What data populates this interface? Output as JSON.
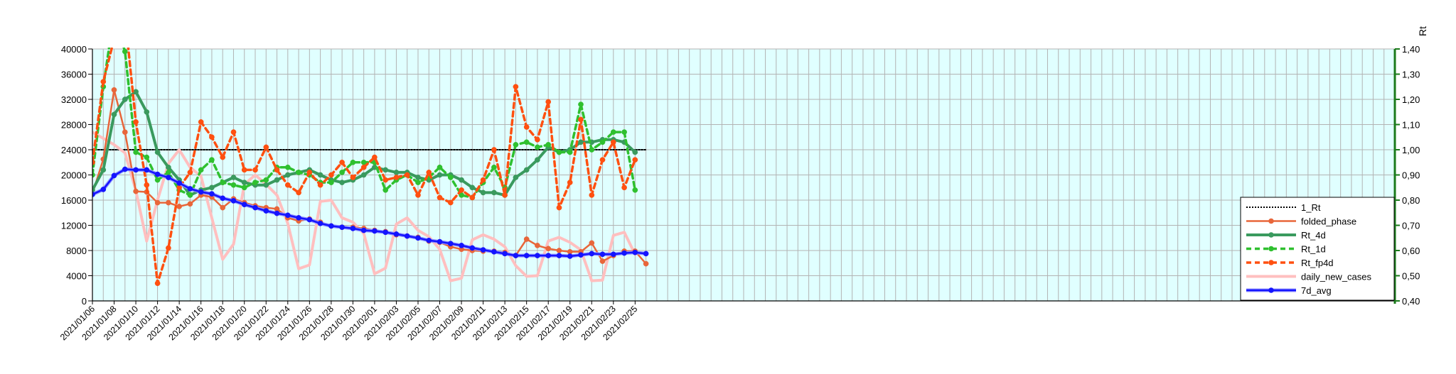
{
  "chart_data": {
    "type": "line",
    "title": "",
    "xlabel": "",
    "ylabel_left": "",
    "ylabel_right": "Rt",
    "ylim_left": [
      0,
      40000
    ],
    "ylim_right": [
      0.4,
      1.4
    ],
    "yticks_left": [
      "0",
      "4000",
      "8000",
      "12000",
      "16000",
      "20000",
      "24000",
      "28000",
      "32000",
      "36000",
      "40000"
    ],
    "yticks_right": [
      "0,40",
      "0,50",
      "0,60",
      "0,70",
      "0,80",
      "0,90",
      "1,00",
      "1,10",
      "1,20",
      "1,30",
      "1,40"
    ],
    "grid": true,
    "legend_position": "right",
    "x_start": "2021/01/06",
    "x_end": "2021/05/06",
    "x_tick_labels": [
      "2021/01/06",
      "2021/01/08",
      "2021/01/10",
      "2021/01/12",
      "2021/01/14",
      "2021/01/16",
      "2021/01/18",
      "2021/01/20",
      "2021/01/22",
      "2021/01/24",
      "2021/01/26",
      "2021/01/28",
      "2021/01/30",
      "2021/02/01",
      "2021/02/03",
      "2021/02/05",
      "2021/02/07",
      "2021/02/09",
      "2021/02/11",
      "2021/02/13",
      "2021/02/15",
      "2021/02/17",
      "2021/02/19",
      "2021/02/21",
      "2021/02/23",
      "2021/02/25"
    ],
    "x": [
      "2021/01/06",
      "2021/01/07",
      "2021/01/08",
      "2021/01/09",
      "2021/01/10",
      "2021/01/11",
      "2021/01/12",
      "2021/01/13",
      "2021/01/14",
      "2021/01/15",
      "2021/01/16",
      "2021/01/17",
      "2021/01/18",
      "2021/01/19",
      "2021/01/20",
      "2021/01/21",
      "2021/01/22",
      "2021/01/23",
      "2021/01/24",
      "2021/01/25",
      "2021/01/26",
      "2021/01/27",
      "2021/01/28",
      "2021/01/29",
      "2021/01/30",
      "2021/01/31",
      "2021/02/01",
      "2021/02/02",
      "2021/02/03",
      "2021/02/04",
      "2021/02/05",
      "2021/02/06",
      "2021/02/07",
      "2021/02/08",
      "2021/02/09",
      "2021/02/10",
      "2021/02/11",
      "2021/02/12",
      "2021/02/13",
      "2021/02/14",
      "2021/02/15",
      "2021/02/16",
      "2021/02/17",
      "2021/02/18",
      "2021/02/19",
      "2021/02/20",
      "2021/02/21",
      "2021/02/22",
      "2021/02/23",
      "2021/02/24",
      "2021/02/25",
      "2021/02/26"
    ],
    "series": [
      {
        "name": "1_Rt",
        "axis": "right",
        "color": "#000000",
        "dash": "dotted",
        "marker": "none",
        "width": 2,
        "values": [
          1.0,
          1.0,
          1.0,
          1.0,
          1.0,
          1.0,
          1.0,
          1.0,
          1.0,
          1.0,
          1.0,
          1.0,
          1.0,
          1.0,
          1.0,
          1.0,
          1.0,
          1.0,
          1.0,
          1.0,
          1.0,
          1.0,
          1.0,
          1.0,
          1.0,
          1.0,
          1.0,
          1.0,
          1.0,
          1.0,
          1.0,
          1.0,
          1.0,
          1.0,
          1.0,
          1.0,
          1.0,
          1.0,
          1.0,
          1.0,
          1.0,
          1.0,
          1.0,
          1.0,
          1.0,
          1.0,
          1.0,
          1.0,
          1.0,
          1.0,
          1.0,
          1.0
        ]
      },
      {
        "name": "daily_new_cases",
        "axis": "left",
        "color": "#ffbfbf",
        "dash": "solid",
        "marker": "none",
        "width": 4,
        "values": [
          26800,
          25800,
          24800,
          23500,
          17500,
          9500,
          16000,
          21800,
          24000,
          21200,
          19800,
          13200,
          6600,
          9000,
          18500,
          20000,
          18500,
          16800,
          12300,
          5100,
          5700,
          15800,
          16000,
          13200,
          12500,
          10700,
          4300,
          5200,
          12200,
          13200,
          11200,
          10200,
          8200,
          3200,
          3600,
          9700,
          10500,
          9800,
          8600,
          5600,
          3900,
          4000,
          9500,
          10100,
          9300,
          8100,
          3200,
          3300,
          10400,
          10900,
          7400,
          null
        ]
      },
      {
        "name": "folded_phase",
        "axis": "left",
        "color": "#e8663a",
        "dash": "solid",
        "marker": "circle",
        "width": 2.5,
        "values": [
          17000,
          22500,
          33500,
          26800,
          17400,
          17300,
          15600,
          15600,
          15000,
          15400,
          16800,
          16500,
          14800,
          16200,
          15600,
          15100,
          14800,
          14600,
          13200,
          12700,
          13000,
          12500,
          11900,
          11700,
          11700,
          11500,
          11200,
          11000,
          10500,
          10300,
          10100,
          9500,
          9300,
          8600,
          8200,
          8000,
          7900,
          7900,
          7700,
          7200,
          9800,
          8800,
          8300,
          8000,
          7800,
          7800,
          9200,
          6300,
          7200,
          7900,
          7900,
          5900
        ]
      },
      {
        "name": "Rt_4d",
        "axis": "right",
        "color": "#3a9a5e",
        "dash": "solid",
        "marker": "circle",
        "width": 4,
        "values": [
          0.84,
          0.92,
          1.14,
          1.2,
          1.23,
          1.15,
          0.99,
          0.93,
          0.88,
          0.82,
          0.84,
          0.85,
          0.87,
          0.89,
          0.87,
          0.86,
          0.86,
          0.88,
          0.9,
          0.91,
          0.92,
          0.9,
          0.88,
          0.87,
          0.88,
          0.9,
          0.93,
          0.92,
          0.91,
          0.91,
          0.89,
          0.88,
          0.9,
          0.9,
          0.88,
          0.85,
          0.83,
          0.83,
          0.82,
          0.89,
          0.92,
          0.96,
          1.01,
          0.99,
          1.0,
          1.03,
          1.03,
          1.04,
          1.04,
          1.03,
          0.99,
          null
        ]
      },
      {
        "name": "Rt_1d",
        "axis": "right",
        "color": "#2fc02f",
        "dash": "dashed",
        "marker": "circle",
        "width": 3.5,
        "values": [
          0.9,
          1.25,
          1.54,
          1.39,
          0.99,
          0.97,
          0.88,
          0.91,
          0.84,
          0.82,
          0.92,
          0.96,
          0.87,
          0.86,
          0.85,
          0.87,
          0.88,
          0.93,
          0.93,
          0.91,
          0.9,
          0.87,
          0.87,
          0.91,
          0.95,
          0.95,
          0.95,
          0.84,
          0.88,
          0.9,
          0.87,
          0.89,
          0.93,
          0.89,
          0.82,
          0.81,
          0.87,
          0.93,
          0.85,
          1.02,
          1.03,
          1.01,
          1.02,
          0.99,
          0.99,
          1.18,
          1.0,
          1.03,
          1.07,
          1.07,
          0.84,
          null
        ]
      },
      {
        "name": "Rt_fp4d",
        "axis": "right",
        "color": "#ff5010",
        "dash": "dashed",
        "marker": "circle",
        "width": 3.5,
        "values": [
          0.95,
          1.27,
          1.44,
          1.53,
          1.11,
          0.86,
          0.47,
          0.61,
          0.85,
          0.91,
          1.11,
          1.05,
          0.97,
          1.07,
          0.92,
          0.92,
          1.01,
          0.92,
          0.86,
          0.83,
          0.91,
          0.86,
          0.9,
          0.95,
          0.89,
          0.93,
          0.97,
          0.88,
          0.89,
          0.9,
          0.82,
          0.91,
          0.81,
          0.79,
          0.84,
          0.81,
          0.88,
          1.0,
          0.82,
          1.25,
          1.09,
          1.04,
          1.19,
          0.77,
          0.87,
          1.12,
          0.82,
          0.96,
          1.03,
          0.85,
          0.96,
          null
        ]
      },
      {
        "name": "7d_avg",
        "axis": "left",
        "color": "#1414ff",
        "halo": "#8d8dff",
        "dash": "solid",
        "marker": "circle",
        "width": 2.5,
        "values": [
          16900,
          17700,
          19900,
          20900,
          20800,
          20800,
          20100,
          19600,
          18700,
          17800,
          17300,
          17000,
          16300,
          15900,
          15300,
          14800,
          14300,
          13900,
          13600,
          13200,
          12900,
          12300,
          11900,
          11700,
          11500,
          11200,
          11100,
          10900,
          10600,
          10300,
          10000,
          9600,
          9400,
          9100,
          8800,
          8400,
          8100,
          7800,
          7500,
          7200,
          7200,
          7200,
          7200,
          7200,
          7100,
          7300,
          7500,
          7400,
          7400,
          7600,
          7700,
          7500
        ]
      }
    ],
    "legend": [
      "1_Rt",
      "folded_phase",
      "Rt_4d",
      "Rt_1d",
      "Rt_fp4d",
      "daily_new_cases",
      "7d_avg"
    ]
  }
}
